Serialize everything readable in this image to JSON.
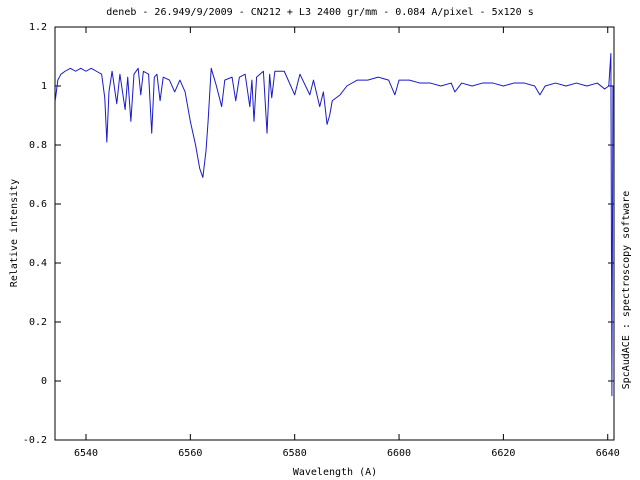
{
  "chart_data": {
    "type": "line",
    "title": "deneb - 26.949/9/2009 - CN212 + L3 2400 gr/mm - 0.084 A/pixel - 5x120 s",
    "x_label": "Wavelength (A)",
    "y_label": "Relative intensity",
    "side_note": "SpcAudACE : spectroscopy software",
    "xlim": [
      6534.06,
      6641.2
    ],
    "ylim": [
      -0.2,
      1.2
    ],
    "xticks": [
      6540,
      6560,
      6580,
      6600,
      6620,
      6640
    ],
    "yticks": [
      -0.2,
      0,
      0.2,
      0.4,
      0.6,
      0.8,
      1,
      1.2
    ],
    "grid": false,
    "series": [
      {
        "color": "#1a1ac8",
        "x": [
          6534.1,
          6534.6,
          6535.2,
          6536,
          6537,
          6538,
          6539,
          6540,
          6541,
          6542,
          6543,
          6543.6,
          6544,
          6544.4,
          6545,
          6545.9,
          6546.5,
          6547.5,
          6548,
          6548.6,
          6549.2,
          6550,
          6550.5,
          6551,
          6552,
          6552.6,
          6553.1,
          6553.6,
          6554.2,
          6554.8,
          6556,
          6557,
          6558,
          6559,
          6560,
          6561,
          6561.8,
          6562.4,
          6563,
          6563.4,
          6564,
          6565,
          6566,
          6566.6,
          6568,
          6568.7,
          6569.4,
          6570.5,
          6571.4,
          6571.8,
          6572.2,
          6572.7,
          6574,
          6574.7,
          6575.2,
          6575.6,
          6576.2,
          6578,
          6580,
          6581,
          6582.9,
          6583.6,
          6584.8,
          6585.5,
          6586.2,
          6586.7,
          6587.2,
          6588.7,
          6590,
          6592,
          6594,
          6596,
          6598,
          6599.2,
          6600,
          6602,
          6604,
          6606,
          6608,
          6610,
          6610.7,
          6612,
          6614,
          6616,
          6618,
          6620,
          6622,
          6624,
          6626,
          6627,
          6628,
          6630,
          6632,
          6634,
          6636,
          6638,
          6639.4,
          6640.2,
          6640.6,
          6640.8,
          6641
        ],
        "values": [
          0.95,
          1.02,
          1.04,
          1.05,
          1.06,
          1.05,
          1.06,
          1.05,
          1.06,
          1.05,
          1.04,
          0.96,
          0.81,
          0.98,
          1.05,
          0.94,
          1.04,
          0.92,
          1.03,
          0.88,
          1.04,
          1.06,
          0.97,
          1.05,
          1.04,
          0.84,
          1.03,
          1.04,
          0.95,
          1.03,
          1.02,
          0.98,
          1.02,
          0.98,
          0.88,
          0.8,
          0.72,
          0.69,
          0.78,
          0.88,
          1.06,
          1.0,
          0.93,
          1.02,
          1.03,
          0.95,
          1.03,
          1.04,
          0.93,
          1.02,
          0.88,
          1.03,
          1.05,
          0.84,
          1.04,
          0.96,
          1.05,
          1.05,
          0.97,
          1.04,
          0.97,
          1.02,
          0.93,
          0.98,
          0.87,
          0.9,
          0.95,
          0.97,
          1.0,
          1.02,
          1.02,
          1.03,
          1.02,
          0.97,
          1.02,
          1.02,
          1.01,
          1.01,
          1.0,
          1.01,
          0.98,
          1.01,
          1.0,
          1.01,
          1.01,
          1.0,
          1.01,
          1.01,
          1.0,
          0.97,
          1.0,
          1.01,
          1.0,
          1.01,
          1.0,
          1.01,
          0.99,
          1.0,
          1.11,
          -0.05,
          1.0
        ]
      }
    ]
  }
}
